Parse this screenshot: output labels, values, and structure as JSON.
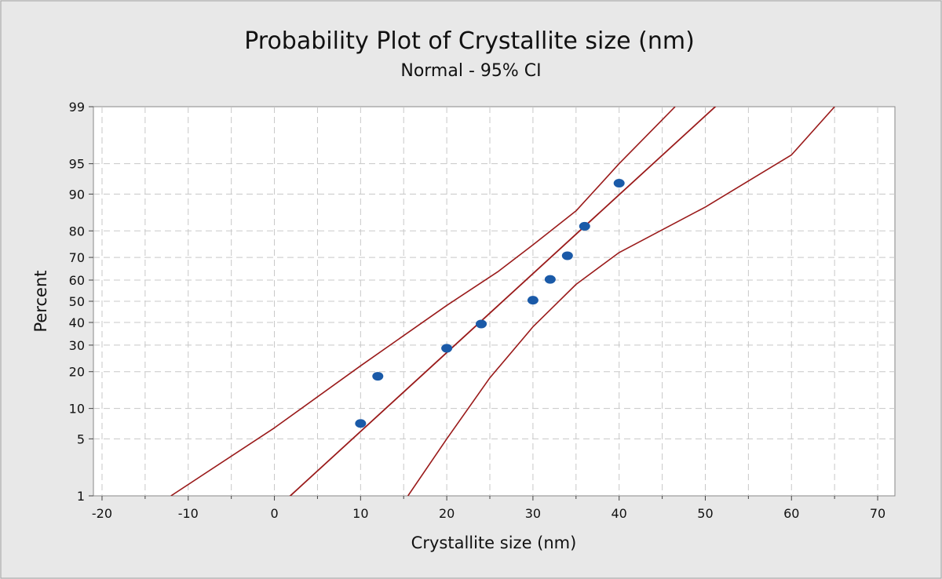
{
  "chart_data": {
    "type": "scatter",
    "title": "Probability Plot of Crystallite size (nm)",
    "subtitle": "Normal - 95% CI",
    "xlabel": "Crystallite size (nm)",
    "ylabel": "Percent",
    "xlim": [
      -21,
      72
    ],
    "x_ticks": [
      -20,
      -10,
      0,
      10,
      20,
      30,
      40,
      50,
      60,
      70
    ],
    "x_minor_grid": [
      -15,
      -5,
      5,
      15,
      25,
      35,
      45,
      55,
      65
    ],
    "y_scale": "normal-probability",
    "ylim": [
      1,
      99
    ],
    "y_ticks": [
      1,
      5,
      10,
      20,
      30,
      40,
      50,
      60,
      70,
      80,
      90,
      95,
      99
    ],
    "grid": true,
    "points": [
      {
        "x": 10,
        "y": 7.2
      },
      {
        "x": 12,
        "y": 18.5
      },
      {
        "x": 20,
        "y": 28.7
      },
      {
        "x": 24,
        "y": 39.3
      },
      {
        "x": 30,
        "y": 50.5
      },
      {
        "x": 32,
        "y": 60.3
      },
      {
        "x": 34,
        "y": 70.7
      },
      {
        "x": 36,
        "y": 81.5
      },
      {
        "x": 40,
        "y": 92.1
      }
    ],
    "fit_line": {
      "mean": 26.5,
      "stdev": 10.6
    },
    "ci_lower": [
      [
        -12,
        1
      ],
      [
        0,
        6.5
      ],
      [
        10,
        22
      ],
      [
        20,
        48
      ],
      [
        26,
        64
      ],
      [
        30,
        75
      ],
      [
        35,
        86
      ],
      [
        40,
        95
      ],
      [
        45,
        98.5
      ],
      [
        46.5,
        99
      ]
    ],
    "ci_upper": [
      [
        15.5,
        1
      ],
      [
        20,
        5
      ],
      [
        25,
        18
      ],
      [
        30,
        38
      ],
      [
        35,
        58
      ],
      [
        40,
        72
      ],
      [
        50,
        87
      ],
      [
        60,
        96
      ],
      [
        65,
        99
      ]
    ],
    "colors": {
      "points": "#1a5aa8",
      "lines": "#9a1a1a",
      "plot_bg": "#ffffff",
      "outer_bg": "#e8e8e8",
      "grid": "#c8c8c8"
    }
  }
}
